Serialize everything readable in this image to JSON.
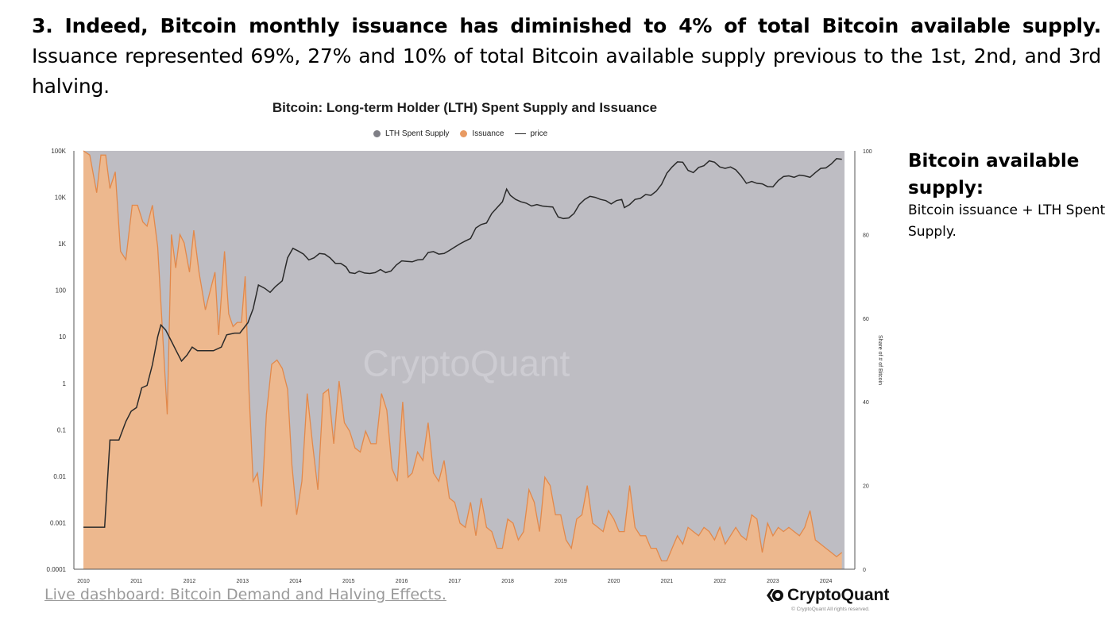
{
  "intro": {
    "bold": "3. Indeed, Bitcoin monthly issuance has diminished to 4% of total Bitcoin available supply.",
    "rest": " Issuance represented 69%, 27% and 10% of total Bitcoin available supply previous to the 1st, 2nd, and 3rd halving."
  },
  "sidebar": {
    "title": "Bitcoin available supply:",
    "text": "Bitcoin issuance + LTH Spent Supply."
  },
  "footer": {
    "link": "Live dashboard: Bitcoin Demand and Halving Effects.",
    "brand": "CryptoQuant",
    "copyright": "© CryptoQuant All rights reserved."
  },
  "chart_data": {
    "type": "area",
    "title": "Bitcoin: Long-term Holder (LTH) Spent Supply and Issuance",
    "watermark": "CryptoQuant",
    "legend": [
      {
        "name": "LTH Spent Supply",
        "color": "#7f7f86",
        "kind": "dot"
      },
      {
        "name": "Issuance",
        "color": "#e89a62",
        "kind": "dot"
      },
      {
        "name": "price",
        "color": "#2a2a2a",
        "kind": "line"
      }
    ],
    "colors": {
      "lth_fill": "#bebdc3",
      "issuance_fill": "#edb88e",
      "issuance_line": "#e2894b",
      "price_line": "#2a2a2a"
    },
    "x_ticks": [
      "2010",
      "2011",
      "2012",
      "2013",
      "2014",
      "2015",
      "2016",
      "2017",
      "2018",
      "2019",
      "2020",
      "2021",
      "2022",
      "2023",
      "2024"
    ],
    "left_ticks": [
      "100K",
      "10K",
      "1K",
      "100",
      "10",
      "1",
      "0.1",
      "0.01",
      "0.001",
      "0.0001"
    ],
    "right_ticks": [
      "100",
      "80",
      "60",
      "40",
      "20",
      "0"
    ],
    "ylabel_right": "Share of # of Bitcoin",
    "ylim_right": [
      0,
      100
    ],
    "ylim_left_log": [
      0.0001,
      100000
    ],
    "x_range": [
      2010.0,
      2024.35
    ],
    "lth_spent_supply_share_pct": 100,
    "issuance_share_pct": [
      [
        2010.0,
        100
      ],
      [
        2010.12,
        99
      ],
      [
        2010.25,
        90
      ],
      [
        2010.33,
        99
      ],
      [
        2010.42,
        99
      ],
      [
        2010.5,
        91
      ],
      [
        2010.6,
        95
      ],
      [
        2010.7,
        76
      ],
      [
        2010.8,
        74
      ],
      [
        2010.92,
        87
      ],
      [
        2011.02,
        87
      ],
      [
        2011.12,
        83
      ],
      [
        2011.2,
        82
      ],
      [
        2011.3,
        87
      ],
      [
        2011.4,
        77
      ],
      [
        2011.5,
        55
      ],
      [
        2011.58,
        37
      ],
      [
        2011.66,
        80
      ],
      [
        2011.74,
        72
      ],
      [
        2011.82,
        80
      ],
      [
        2011.9,
        78
      ],
      [
        2012.0,
        71
      ],
      [
        2012.08,
        81
      ],
      [
        2012.18,
        71
      ],
      [
        2012.3,
        62
      ],
      [
        2012.4,
        67
      ],
      [
        2012.48,
        71
      ],
      [
        2012.55,
        56
      ],
      [
        2012.66,
        76
      ],
      [
        2012.74,
        61
      ],
      [
        2012.82,
        58
      ],
      [
        2012.9,
        59
      ],
      [
        2012.98,
        59
      ],
      [
        2013.05,
        70
      ],
      [
        2013.12,
        43
      ],
      [
        2013.2,
        21
      ],
      [
        2013.28,
        23
      ],
      [
        2013.36,
        15
      ],
      [
        2013.45,
        37
      ],
      [
        2013.55,
        49
      ],
      [
        2013.65,
        50
      ],
      [
        2013.75,
        48
      ],
      [
        2013.85,
        43
      ],
      [
        2013.93,
        25
      ],
      [
        2014.02,
        13
      ],
      [
        2014.12,
        21
      ],
      [
        2014.22,
        42
      ],
      [
        2014.32,
        30
      ],
      [
        2014.42,
        19
      ],
      [
        2014.52,
        42
      ],
      [
        2014.62,
        43
      ],
      [
        2014.72,
        30
      ],
      [
        2014.82,
        45
      ],
      [
        2014.92,
        35
      ],
      [
        2015.02,
        33
      ],
      [
        2015.12,
        29
      ],
      [
        2015.22,
        28
      ],
      [
        2015.32,
        33
      ],
      [
        2015.42,
        30
      ],
      [
        2015.52,
        30
      ],
      [
        2015.62,
        42
      ],
      [
        2015.72,
        38
      ],
      [
        2015.82,
        24
      ],
      [
        2015.92,
        21
      ],
      [
        2016.02,
        40
      ],
      [
        2016.12,
        22
      ],
      [
        2016.2,
        23
      ],
      [
        2016.3,
        28
      ],
      [
        2016.4,
        26
      ],
      [
        2016.5,
        35
      ],
      [
        2016.6,
        23
      ],
      [
        2016.7,
        21
      ],
      [
        2016.8,
        26
      ],
      [
        2016.9,
        17
      ],
      [
        2017.0,
        16
      ],
      [
        2017.1,
        11
      ],
      [
        2017.2,
        10
      ],
      [
        2017.3,
        16
      ],
      [
        2017.4,
        8
      ],
      [
        2017.5,
        17
      ],
      [
        2017.6,
        10
      ],
      [
        2017.7,
        9
      ],
      [
        2017.8,
        5
      ],
      [
        2017.9,
        5
      ],
      [
        2018.0,
        12
      ],
      [
        2018.1,
        11
      ],
      [
        2018.2,
        7
      ],
      [
        2018.3,
        9
      ],
      [
        2018.4,
        19
      ],
      [
        2018.5,
        16
      ],
      [
        2018.6,
        9
      ],
      [
        2018.7,
        22
      ],
      [
        2018.8,
        20
      ],
      [
        2018.9,
        13
      ],
      [
        2019.0,
        13
      ],
      [
        2019.1,
        7
      ],
      [
        2019.2,
        5
      ],
      [
        2019.3,
        12
      ],
      [
        2019.4,
        13
      ],
      [
        2019.5,
        20
      ],
      [
        2019.6,
        11
      ],
      [
        2019.7,
        10
      ],
      [
        2019.8,
        9
      ],
      [
        2019.9,
        14
      ],
      [
        2020.0,
        12
      ],
      [
        2020.1,
        9
      ],
      [
        2020.2,
        9
      ],
      [
        2020.3,
        20
      ],
      [
        2020.4,
        10
      ],
      [
        2020.5,
        8
      ],
      [
        2020.6,
        8
      ],
      [
        2020.7,
        5
      ],
      [
        2020.8,
        5
      ],
      [
        2020.9,
        2
      ],
      [
        2021.0,
        2
      ],
      [
        2021.1,
        5
      ],
      [
        2021.2,
        8
      ],
      [
        2021.3,
        6
      ],
      [
        2021.4,
        10
      ],
      [
        2021.5,
        9
      ],
      [
        2021.6,
        8
      ],
      [
        2021.7,
        10
      ],
      [
        2021.8,
        9
      ],
      [
        2021.9,
        7
      ],
      [
        2022.0,
        10
      ],
      [
        2022.1,
        6
      ],
      [
        2022.2,
        8
      ],
      [
        2022.3,
        10
      ],
      [
        2022.4,
        8
      ],
      [
        2022.5,
        7
      ],
      [
        2022.6,
        13
      ],
      [
        2022.7,
        12
      ],
      [
        2022.8,
        4
      ],
      [
        2022.9,
        11
      ],
      [
        2023.0,
        8
      ],
      [
        2023.1,
        10
      ],
      [
        2023.2,
        9
      ],
      [
        2023.3,
        10
      ],
      [
        2023.4,
        9
      ],
      [
        2023.5,
        8
      ],
      [
        2023.6,
        10
      ],
      [
        2023.7,
        14
      ],
      [
        2023.8,
        7
      ],
      [
        2023.9,
        6
      ],
      [
        2024.0,
        5
      ],
      [
        2024.1,
        4
      ],
      [
        2024.2,
        3
      ],
      [
        2024.3,
        4
      ]
    ],
    "price_usd": [
      [
        2010.0,
        0.0008
      ],
      [
        2010.25,
        0.0008
      ],
      [
        2010.4,
        0.0008
      ],
      [
        2010.5,
        0.06
      ],
      [
        2010.58,
        0.06
      ],
      [
        2010.67,
        0.06
      ],
      [
        2010.8,
        0.15
      ],
      [
        2010.9,
        0.25
      ],
      [
        2011.0,
        0.3
      ],
      [
        2011.1,
        0.8
      ],
      [
        2011.2,
        0.9
      ],
      [
        2011.3,
        2.5
      ],
      [
        2011.4,
        10
      ],
      [
        2011.46,
        18
      ],
      [
        2011.55,
        14
      ],
      [
        2011.66,
        8
      ],
      [
        2011.75,
        5
      ],
      [
        2011.85,
        3
      ],
      [
        2011.95,
        4
      ],
      [
        2012.05,
        6
      ],
      [
        2012.15,
        5
      ],
      [
        2012.3,
        5
      ],
      [
        2012.45,
        5
      ],
      [
        2012.6,
        6
      ],
      [
        2012.7,
        11
      ],
      [
        2012.85,
        12
      ],
      [
        2012.95,
        12
      ],
      [
        2013.1,
        20
      ],
      [
        2013.2,
        40
      ],
      [
        2013.3,
        130
      ],
      [
        2013.42,
        110
      ],
      [
        2013.52,
        90
      ],
      [
        2013.62,
        120
      ],
      [
        2013.75,
        160
      ],
      [
        2013.85,
        500
      ],
      [
        2013.95,
        800
      ],
      [
        2014.05,
        700
      ],
      [
        2014.15,
        600
      ],
      [
        2014.25,
        450
      ],
      [
        2014.35,
        500
      ],
      [
        2014.45,
        620
      ],
      [
        2014.55,
        600
      ],
      [
        2014.65,
        500
      ],
      [
        2014.75,
        380
      ],
      [
        2014.85,
        380
      ],
      [
        2014.95,
        320
      ],
      [
        2015.02,
        240
      ],
      [
        2015.12,
        230
      ],
      [
        2015.2,
        260
      ],
      [
        2015.3,
        235
      ],
      [
        2015.4,
        230
      ],
      [
        2015.5,
        240
      ],
      [
        2015.6,
        280
      ],
      [
        2015.7,
        240
      ],
      [
        2015.8,
        260
      ],
      [
        2015.9,
        350
      ],
      [
        2016.0,
        430
      ],
      [
        2016.1,
        420
      ],
      [
        2016.2,
        410
      ],
      [
        2016.3,
        450
      ],
      [
        2016.4,
        460
      ],
      [
        2016.5,
        650
      ],
      [
        2016.6,
        680
      ],
      [
        2016.7,
        600
      ],
      [
        2016.8,
        620
      ],
      [
        2016.9,
        720
      ],
      [
        2017.0,
        850
      ],
      [
        2017.1,
        1000
      ],
      [
        2017.2,
        1150
      ],
      [
        2017.3,
        1300
      ],
      [
        2017.4,
        2200
      ],
      [
        2017.5,
        2600
      ],
      [
        2017.6,
        2800
      ],
      [
        2017.7,
        4500
      ],
      [
        2017.8,
        6000
      ],
      [
        2017.9,
        8000
      ],
      [
        2017.98,
        15000
      ],
      [
        2018.05,
        11000
      ],
      [
        2018.15,
        9000
      ],
      [
        2018.25,
        8000
      ],
      [
        2018.35,
        7500
      ],
      [
        2018.45,
        6500
      ],
      [
        2018.55,
        7000
      ],
      [
        2018.65,
        6500
      ],
      [
        2018.75,
        6300
      ],
      [
        2018.85,
        6200
      ],
      [
        2018.95,
        3800
      ],
      [
        2019.05,
        3500
      ],
      [
        2019.15,
        3600
      ],
      [
        2019.25,
        4500
      ],
      [
        2019.35,
        7000
      ],
      [
        2019.45,
        9000
      ],
      [
        2019.55,
        10500
      ],
      [
        2019.65,
        10000
      ],
      [
        2019.75,
        9000
      ],
      [
        2019.85,
        8500
      ],
      [
        2019.95,
        7200
      ],
      [
        2020.05,
        8500
      ],
      [
        2020.15,
        9000
      ],
      [
        2020.2,
        6000
      ],
      [
        2020.3,
        7000
      ],
      [
        2020.4,
        9000
      ],
      [
        2020.5,
        9500
      ],
      [
        2020.6,
        11500
      ],
      [
        2020.7,
        11000
      ],
      [
        2020.8,
        13500
      ],
      [
        2020.9,
        19000
      ],
      [
        2021.0,
        33000
      ],
      [
        2021.1,
        45000
      ],
      [
        2021.2,
        58000
      ],
      [
        2021.3,
        57000
      ],
      [
        2021.4,
        38000
      ],
      [
        2021.5,
        34000
      ],
      [
        2021.6,
        44000
      ],
      [
        2021.7,
        48000
      ],
      [
        2021.8,
        61000
      ],
      [
        2021.9,
        57000
      ],
      [
        2022.0,
        45000
      ],
      [
        2022.1,
        42000
      ],
      [
        2022.2,
        45000
      ],
      [
        2022.3,
        39000
      ],
      [
        2022.4,
        29000
      ],
      [
        2022.5,
        20000
      ],
      [
        2022.6,
        22000
      ],
      [
        2022.7,
        20000
      ],
      [
        2022.8,
        19500
      ],
      [
        2022.9,
        17000
      ],
      [
        2023.0,
        16800
      ],
      [
        2023.1,
        23000
      ],
      [
        2023.2,
        28000
      ],
      [
        2023.3,
        29000
      ],
      [
        2023.4,
        27000
      ],
      [
        2023.5,
        30000
      ],
      [
        2023.6,
        29000
      ],
      [
        2023.7,
        27000
      ],
      [
        2023.8,
        34000
      ],
      [
        2023.9,
        42000
      ],
      [
        2024.0,
        43000
      ],
      [
        2024.1,
        52000
      ],
      [
        2024.2,
        68000
      ],
      [
        2024.3,
        66000
      ]
    ]
  }
}
